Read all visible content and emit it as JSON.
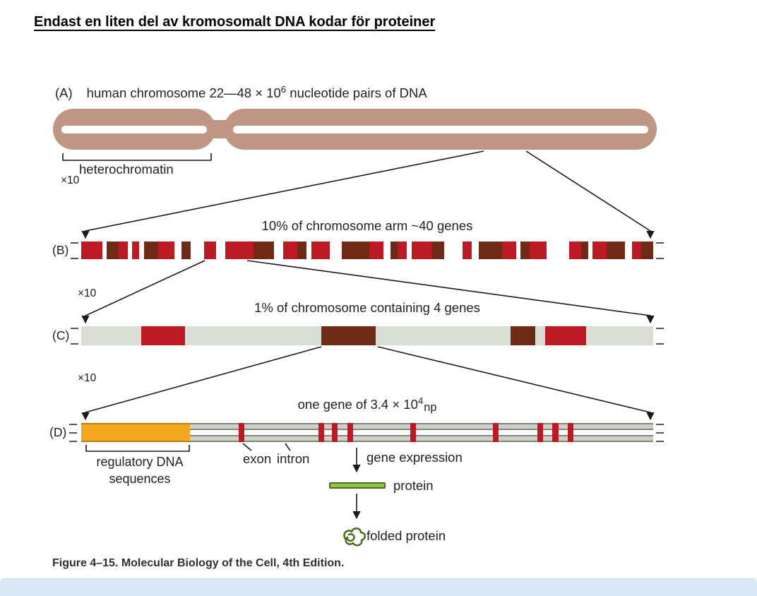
{
  "page": {
    "title": "Endast en liten del av kromosomalt DNA kodar för proteiner",
    "caption": "Figure 4–15. Molecular Biology of the Cell, 4th Edition."
  },
  "colors": {
    "chromosome": "#bf9583",
    "crimson": "#bb1a24",
    "maroon": "#6f2b16",
    "bar_gray": "#d9ddd4",
    "strand_gray": "#ccd0c7",
    "strand_line": "#80867a",
    "orange": "#f4a820",
    "orange_dark": "#bc7e10",
    "green": "#93bf4a",
    "green_dark": "#466f1d",
    "footer_band": "#dce8f5",
    "white": "#ffffff"
  },
  "panelA": {
    "label": "(A)",
    "text_prefix": "human chromosome 22—48 × 10",
    "exponent": "6",
    "text_suffix": " nucleotide pairs of DNA",
    "bracket_label": "heterochromatin"
  },
  "zoom_labels": {
    "ab": "×10",
    "bc": "×10",
    "cd": "×10"
  },
  "panelB": {
    "label": "(B)",
    "header": "10% of chromosome arm ~40 genes",
    "segments": [
      [
        "R",
        9
      ],
      [
        "W",
        2
      ],
      [
        "M",
        5
      ],
      [
        "R",
        4
      ],
      [
        "W",
        2
      ],
      [
        "R",
        3
      ],
      [
        "W",
        2
      ],
      [
        "M",
        6
      ],
      [
        "R",
        7
      ],
      [
        "W",
        3
      ],
      [
        "M",
        4
      ],
      [
        "W",
        6
      ],
      [
        "R",
        5
      ],
      [
        "W",
        4
      ],
      [
        "R",
        12
      ],
      [
        "M",
        9
      ],
      [
        "W",
        4
      ],
      [
        "R",
        6
      ],
      [
        "M",
        4
      ],
      [
        "W",
        2
      ],
      [
        "R",
        8
      ],
      [
        "W",
        5
      ],
      [
        "M",
        12
      ],
      [
        "R",
        6
      ],
      [
        "W",
        3
      ],
      [
        "M",
        3
      ],
      [
        "R",
        4
      ],
      [
        "W",
        2
      ],
      [
        "R",
        9
      ],
      [
        "M",
        5
      ],
      [
        "W",
        8
      ],
      [
        "R",
        4
      ],
      [
        "W",
        3
      ],
      [
        "M",
        10
      ],
      [
        "R",
        6
      ],
      [
        "W",
        2
      ],
      [
        "M",
        4
      ],
      [
        "R",
        7
      ],
      [
        "W",
        10
      ],
      [
        "R",
        5
      ],
      [
        "M",
        3
      ],
      [
        "W",
        2
      ],
      [
        "R",
        6
      ],
      [
        "M",
        8
      ],
      [
        "W",
        3
      ],
      [
        "R",
        4
      ],
      [
        "M",
        5
      ]
    ]
  },
  "panelC": {
    "label": "(C)",
    "header": "1% of chromosome containing 4 genes",
    "segments": [
      [
        "G",
        10.5
      ],
      [
        "R",
        7.7
      ],
      [
        "G",
        23.8
      ],
      [
        "M",
        9.5
      ],
      [
        "G",
        23.5
      ],
      [
        "M",
        4.4
      ],
      [
        "G",
        1.7
      ],
      [
        "R",
        7.2
      ],
      [
        "G",
        11.7
      ]
    ]
  },
  "panelD": {
    "label": "(D)",
    "header_prefix": "one gene of 3.4 × 10",
    "exponent": "4",
    "header_suffix": "np",
    "orange_fraction": 0.19,
    "tick_positions_pct": [
      27.5,
      41.5,
      43.8,
      46.5,
      57.5,
      72.0,
      79.8,
      82.4,
      85.0
    ],
    "tick_width_pct": 1.0,
    "regulatory_line1": "regulatory DNA",
    "regulatory_line2": "sequences",
    "exon_label": "exon",
    "intron_label": "intron",
    "gene_expression_label": "gene expression",
    "protein_label": "protein",
    "folded_protein_label": "folded protein"
  }
}
